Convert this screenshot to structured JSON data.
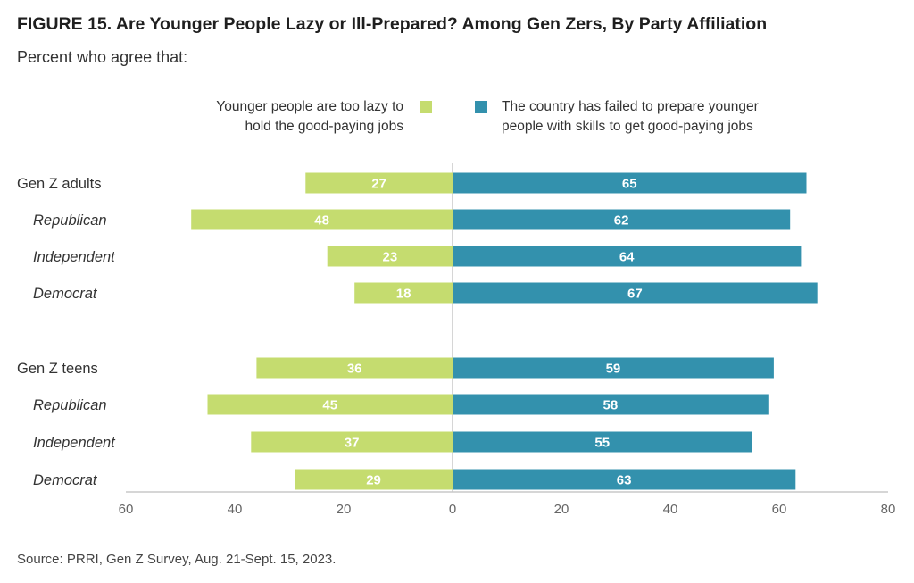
{
  "header": {
    "title": "FIGURE 15.  Are Younger People Lazy or Ill-Prepared? Among Gen Zers, By Party Affiliation",
    "subtitle": "Percent who agree that:"
  },
  "legend": {
    "left_label_line1": "Younger people are too lazy to",
    "left_label_line2": "hold the good-paying jobs",
    "right_label_line1": "The country has failed to prepare younger",
    "right_label_line2": "people with skills to get good-paying jobs"
  },
  "source": "Source: PRRI, Gen Z Survey, Aug. 21-Sept. 15, 2023.",
  "chart_data": {
    "type": "bar",
    "orientation": "horizontal-diverging",
    "categories": [
      "Gen Z adults",
      "Republican",
      "Independent",
      "Democrat",
      "Gen Z teens",
      "Republican",
      "Independent",
      "Democrat"
    ],
    "category_italic": [
      false,
      true,
      true,
      true,
      false,
      true,
      true,
      true
    ],
    "series": [
      {
        "name": "Younger people are too lazy to hold the good-paying jobs",
        "color": "#c5dc6f",
        "direction": "left",
        "values": [
          27,
          48,
          23,
          18,
          36,
          45,
          37,
          29
        ]
      },
      {
        "name": "The country has failed to prepare younger people with skills to get good-paying jobs",
        "color": "#3391ad",
        "direction": "right",
        "values": [
          65,
          62,
          64,
          67,
          59,
          58,
          55,
          63
        ]
      }
    ],
    "x_ticks": [
      "60",
      "40",
      "20",
      "0",
      "20",
      "40",
      "60",
      "80"
    ],
    "x_tick_values": [
      -60,
      -40,
      -20,
      0,
      20,
      40,
      60,
      80
    ],
    "xlim": [
      -60,
      80
    ],
    "grid": false,
    "legend_position": "top"
  }
}
